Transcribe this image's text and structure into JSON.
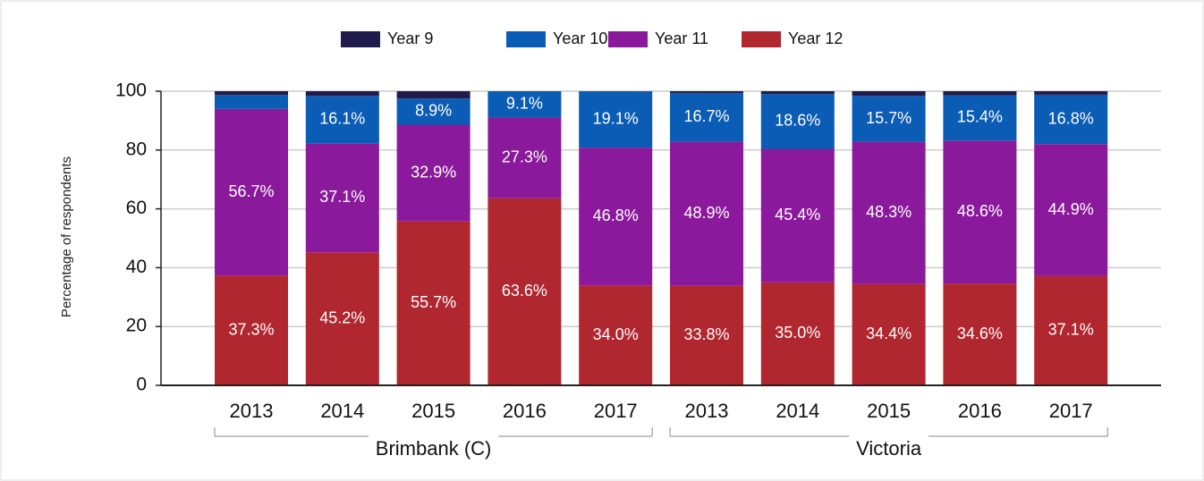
{
  "chart_data": {
    "type": "stacked_bar",
    "y_label": "Percentage of respondents",
    "groups": [
      {
        "name": "Brimbank (C)",
        "categories": [
          "2013",
          "2014",
          "2015",
          "2016",
          "2017"
        ]
      },
      {
        "name": "Victoria",
        "categories": [
          "2013",
          "2014",
          "2015",
          "2016",
          "2017"
        ]
      }
    ],
    "series": [
      {
        "name": "Year 12",
        "color": "#b0272f",
        "values": [
          37.3,
          45.2,
          55.7,
          63.6,
          34.0,
          33.8,
          35.0,
          34.4,
          34.6,
          37.1
        ],
        "value_labels": [
          "37.3%",
          "45.2%",
          "55.7%",
          "63.6%",
          "34.0%",
          "33.8%",
          "35.0%",
          "34.4%",
          "34.6%",
          "37.1%"
        ]
      },
      {
        "name": "Year 11",
        "color": "#8a1a9b",
        "values": [
          56.7,
          37.1,
          32.9,
          27.3,
          46.8,
          48.9,
          45.4,
          48.3,
          48.6,
          44.9
        ],
        "value_labels": [
          "56.7%",
          "37.1%",
          "32.9%",
          "27.3%",
          "46.8%",
          "48.9%",
          "45.4%",
          "48.3%",
          "48.6%",
          "44.9%"
        ]
      },
      {
        "name": "Year 10",
        "color": "#0b5cb5",
        "values": [
          4.7,
          16.1,
          8.9,
          9.1,
          19.1,
          16.7,
          18.6,
          15.7,
          15.4,
          16.8
        ],
        "value_labels": [
          null,
          "16.1%",
          "8.9%",
          "9.1%",
          "19.1%",
          "16.7%",
          "18.6%",
          "15.7%",
          "15.4%",
          "16.8%"
        ]
      },
      {
        "name": "Year 9",
        "color": "#221c4c",
        "values": [
          1.3,
          1.6,
          2.5,
          0,
          0.1,
          0.6,
          1.0,
          1.6,
          1.4,
          1.2
        ]
      }
    ],
    "legend_order": [
      3,
      2,
      1,
      0
    ],
    "ylim": [
      0,
      100
    ],
    "yticks": [
      0,
      20,
      40,
      60,
      80,
      100
    ],
    "grid": true
  }
}
